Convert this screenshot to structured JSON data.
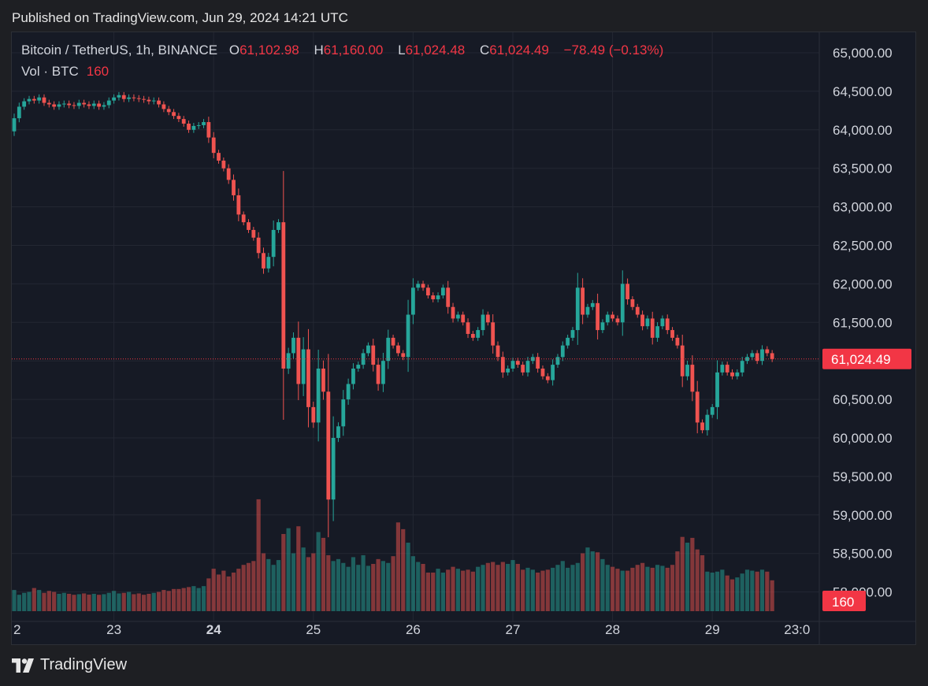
{
  "header": {
    "published": "Published on TradingView.com, Jun 29, 2024 14:21 UTC"
  },
  "legend": {
    "symbol": "Bitcoin / TetherUS, 1h, BINANCE",
    "o_label": "O",
    "o_value": "61,102.98",
    "h_label": "H",
    "h_value": "61,160.00",
    "l_label": "L",
    "l_value": "61,024.48",
    "c_label": "C",
    "c_value": "61,024.49",
    "change": "−78.49 (−0.13%)",
    "vol_label": "Vol · BTC",
    "vol_value": "160"
  },
  "colors": {
    "up": "#26a69a",
    "down": "#ef5350",
    "background": "#161a25",
    "grid": "#232733",
    "badge": "#f23645"
  },
  "footer": {
    "brand": "TradingView",
    "logo_icon": "tradingview-logo-icon"
  },
  "chart_data": {
    "type": "candlestick",
    "symbol": "Bitcoin / TetherUS",
    "interval": "1h",
    "exchange": "BINANCE",
    "ylim": [
      58000,
      65000
    ],
    "y_ticks": [
      "65,000.00",
      "64,500.00",
      "64,000.00",
      "63,500.00",
      "63,000.00",
      "62,500.00",
      "62,000.00",
      "61,500.00",
      "61,000.00",
      "60,500.00",
      "60,000.00",
      "59,500.00",
      "59,000.00",
      "58,500.00",
      "58,000.00"
    ],
    "x_ticks": [
      {
        "label": "2",
        "bar": -0.2,
        "bold": false
      },
      {
        "label": "23",
        "bar": 20,
        "bold": false
      },
      {
        "label": "24",
        "bar": 40,
        "bold": true
      },
      {
        "label": "25",
        "bar": 60,
        "bold": false
      },
      {
        "label": "26",
        "bar": 80,
        "bold": false
      },
      {
        "label": "27",
        "bar": 100,
        "bold": false
      },
      {
        "label": "28",
        "bar": 120,
        "bold": false
      },
      {
        "label": "29",
        "bar": 140,
        "bold": false
      },
      {
        "label": "23:0",
        "bar": 157,
        "bold": false
      }
    ],
    "last_price": 61024.49,
    "last_price_label": "61,024.49",
    "last_volume_label": "160",
    "ohlc_start_close": 63980,
    "closes": [
      64150,
      64300,
      64370,
      64400,
      64380,
      64420,
      64350,
      64330,
      64300,
      64330,
      64340,
      64320,
      64310,
      64350,
      64330,
      64310,
      64340,
      64300,
      64320,
      64380,
      64420,
      64450,
      64400,
      64420,
      64410,
      64400,
      64390,
      64370,
      64380,
      64330,
      64270,
      64230,
      64180,
      64140,
      64080,
      64000,
      64050,
      64060,
      64100,
      63900,
      63700,
      63600,
      63500,
      63350,
      63150,
      62900,
      62800,
      62700,
      62600,
      62400,
      62200,
      62350,
      62700,
      62800,
      60900,
      61100,
      61300,
      60700,
      61150,
      60400,
      60200,
      60900,
      60600,
      59200,
      60000,
      60150,
      60500,
      60700,
      60900,
      60950,
      61100,
      61200,
      60950,
      60700,
      61000,
      61300,
      61200,
      61100,
      61050,
      61600,
      61950,
      62000,
      61950,
      61850,
      61800,
      61850,
      61950,
      61700,
      61550,
      61600,
      61500,
      61350,
      61300,
      61400,
      61600,
      61500,
      61200,
      61050,
      60850,
      60900,
      61000,
      60950,
      60850,
      61000,
      61050,
      60900,
      60800,
      60750,
      60950,
      61050,
      61200,
      61300,
      61400,
      61950,
      61600,
      61700,
      61750,
      61400,
      61500,
      61600,
      61550,
      61500,
      62000,
      61800,
      61700,
      61600,
      61450,
      61550,
      61300,
      61450,
      61550,
      61400,
      61300,
      61200,
      60800,
      60950,
      60600,
      60200,
      60100,
      60300,
      60400,
      60850,
      60950,
      60850,
      60800,
      60850,
      61000,
      61050,
      61100,
      61000,
      61150,
      61100,
      61024.49
    ],
    "volumes": [
      110,
      85,
      95,
      100,
      120,
      110,
      95,
      105,
      100,
      90,
      95,
      90,
      85,
      88,
      92,
      86,
      90,
      85,
      88,
      95,
      105,
      92,
      95,
      100,
      88,
      92,
      85,
      90,
      95,
      100,
      110,
      105,
      115,
      115,
      120,
      125,
      130,
      120,
      130,
      170,
      220,
      190,
      210,
      180,
      200,
      220,
      240,
      250,
      260,
      580,
      300,
      270,
      240,
      265,
      400,
      430,
      300,
      440,
      330,
      280,
      300,
      410,
      380,
      290,
      260,
      270,
      250,
      230,
      280,
      240,
      290,
      235,
      245,
      270,
      260,
      250,
      285,
      460,
      425,
      355,
      285,
      255,
      245,
      200,
      200,
      220,
      200,
      215,
      230,
      220,
      210,
      215,
      205,
      230,
      240,
      250,
      255,
      240,
      255,
      245,
      265,
      245,
      215,
      225,
      215,
      200,
      210,
      215,
      225,
      240,
      260,
      225,
      240,
      250,
      300,
      330,
      310,
      305,
      270,
      240,
      230,
      220,
      210,
      210,
      225,
      240,
      250,
      230,
      225,
      240,
      235,
      225,
      240,
      310,
      385,
      355,
      380,
      320,
      290,
      205,
      200,
      205,
      215,
      185,
      165,
      175,
      195,
      215,
      210,
      205,
      215,
      205,
      160
    ]
  }
}
